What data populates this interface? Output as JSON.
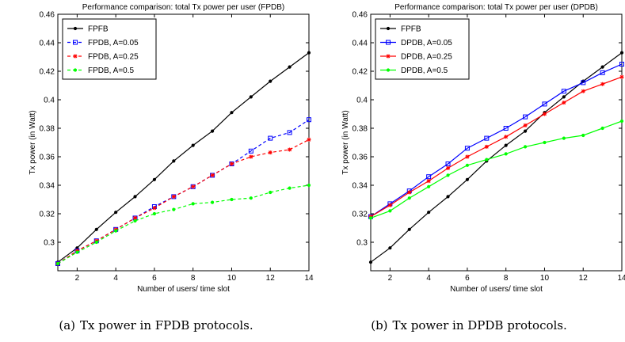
{
  "panels": [
    {
      "caption_tag": "(a)",
      "caption_text": "Tx power in FPDB protocols."
    },
    {
      "caption_tag": "(b)",
      "caption_text": "Tx power in DPDB protocols."
    }
  ],
  "colors": {
    "black": "#000000",
    "blue": "#0000ff",
    "red": "#ff0000",
    "green": "#00ff00"
  },
  "chart_data": [
    {
      "type": "line",
      "title": "Performance comparison: total Tx power per user (FPDB)",
      "xlabel": "Number of users/ time slot",
      "ylabel": "Tx power (in Watt)",
      "xlim": [
        1,
        14
      ],
      "ylim": [
        0.28,
        0.46
      ],
      "xticks": [
        "2",
        "4",
        "6",
        "8",
        "10",
        "12",
        "14"
      ],
      "yticks": [
        "0.3",
        "0.32",
        "0.34",
        "0.36",
        "0.38",
        "0.4",
        "0.42",
        "0.44",
        "0.46"
      ],
      "grid": false,
      "legend_position": "top-left",
      "x": [
        1,
        2,
        3,
        4,
        5,
        6,
        7,
        8,
        9,
        10,
        11,
        12,
        13,
        14
      ],
      "series": [
        {
          "name": "FPFB",
          "color": "#000000",
          "dash": "solid",
          "marker": "dot",
          "values": [
            0.286,
            0.296,
            0.309,
            0.321,
            0.332,
            0.344,
            0.357,
            0.368,
            0.378,
            0.391,
            0.402,
            0.413,
            0.423,
            0.433
          ]
        },
        {
          "name": "FPDB, A=0.05",
          "color": "#0000ff",
          "dash": "dashed",
          "marker": "square",
          "values": [
            0.285,
            0.294,
            0.301,
            0.309,
            0.317,
            0.325,
            0.332,
            0.339,
            0.347,
            0.355,
            0.364,
            0.373,
            0.377,
            0.386
          ]
        },
        {
          "name": "FPDB, A=0.25",
          "color": "#ff0000",
          "dash": "dashed",
          "marker": "star",
          "values": [
            0.285,
            0.294,
            0.301,
            0.309,
            0.317,
            0.324,
            0.332,
            0.339,
            0.347,
            0.355,
            0.36,
            0.363,
            0.365,
            0.372
          ]
        },
        {
          "name": "FPDB, A=0.5",
          "color": "#00ff00",
          "dash": "dashed",
          "marker": "dot",
          "values": [
            0.285,
            0.293,
            0.3,
            0.308,
            0.315,
            0.32,
            0.323,
            0.327,
            0.328,
            0.33,
            0.331,
            0.335,
            0.338,
            0.34
          ]
        }
      ]
    },
    {
      "type": "line",
      "title": "Performance comparison: total Tx power per user (DPDB)",
      "xlabel": "Number of users/ time slot",
      "ylabel": "Tx power (in Watt)",
      "xlim": [
        1,
        14
      ],
      "ylim": [
        0.28,
        0.46
      ],
      "xticks": [
        "2",
        "4",
        "6",
        "8",
        "10",
        "12",
        "14"
      ],
      "yticks": [
        "0.3",
        "0.32",
        "0.34",
        "0.36",
        "0.38",
        "0.4",
        "0.42",
        "0.44",
        "0.46"
      ],
      "grid": false,
      "legend_position": "top-left",
      "x": [
        1,
        2,
        3,
        4,
        5,
        6,
        7,
        8,
        9,
        10,
        11,
        12,
        13,
        14
      ],
      "series": [
        {
          "name": "FPFB",
          "color": "#000000",
          "dash": "solid",
          "marker": "dot",
          "values": [
            0.286,
            0.296,
            0.309,
            0.321,
            0.332,
            0.344,
            0.357,
            0.368,
            0.378,
            0.391,
            0.402,
            0.413,
            0.423,
            0.433
          ]
        },
        {
          "name": "DPDB, A=0.05",
          "color": "#0000ff",
          "dash": "solid",
          "marker": "square",
          "values": [
            0.318,
            0.327,
            0.336,
            0.346,
            0.355,
            0.366,
            0.373,
            0.38,
            0.388,
            0.397,
            0.406,
            0.412,
            0.419,
            0.425
          ]
        },
        {
          "name": "DPDB, A=0.25",
          "color": "#ff0000",
          "dash": "solid",
          "marker": "star",
          "values": [
            0.318,
            0.326,
            0.335,
            0.343,
            0.352,
            0.36,
            0.367,
            0.374,
            0.382,
            0.39,
            0.398,
            0.406,
            0.411,
            0.416
          ]
        },
        {
          "name": "DPDB, A=0.5",
          "color": "#00ff00",
          "dash": "solid",
          "marker": "dot",
          "values": [
            0.317,
            0.322,
            0.331,
            0.339,
            0.347,
            0.354,
            0.358,
            0.362,
            0.367,
            0.37,
            0.373,
            0.375,
            0.38,
            0.385
          ]
        }
      ]
    }
  ]
}
